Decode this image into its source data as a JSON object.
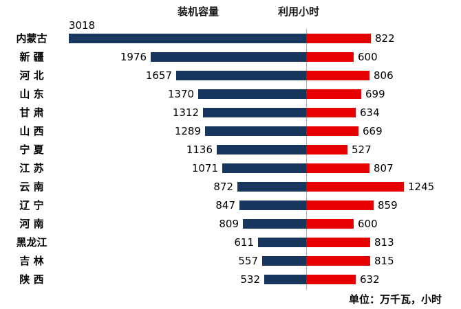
{
  "chart_data": {
    "type": "bar",
    "subtype": "diverging-horizontal",
    "categories": [
      "内蒙古",
      "新 疆",
      "河 北",
      "山 东",
      "甘 肃",
      "山 西",
      "宁 夏",
      "江 苏",
      "云 南",
      "辽 宁",
      "河 南",
      "黑龙江",
      "吉 林",
      "陕 西"
    ],
    "series": [
      {
        "name": "装机容量",
        "color": "#17375e",
        "values": [
          3018,
          1976,
          1657,
          1370,
          1312,
          1289,
          1136,
          1071,
          872,
          847,
          809,
          611,
          557,
          532
        ]
      },
      {
        "name": "利用小时",
        "color": "#e60000",
        "values": [
          822,
          600,
          806,
          699,
          634,
          669,
          527,
          807,
          1245,
          859,
          600,
          813,
          815,
          632
        ]
      }
    ],
    "axis_color": "#aeb4bd",
    "footnote": "单位：万千瓦，小时",
    "legend_position": "top",
    "grid": false
  }
}
